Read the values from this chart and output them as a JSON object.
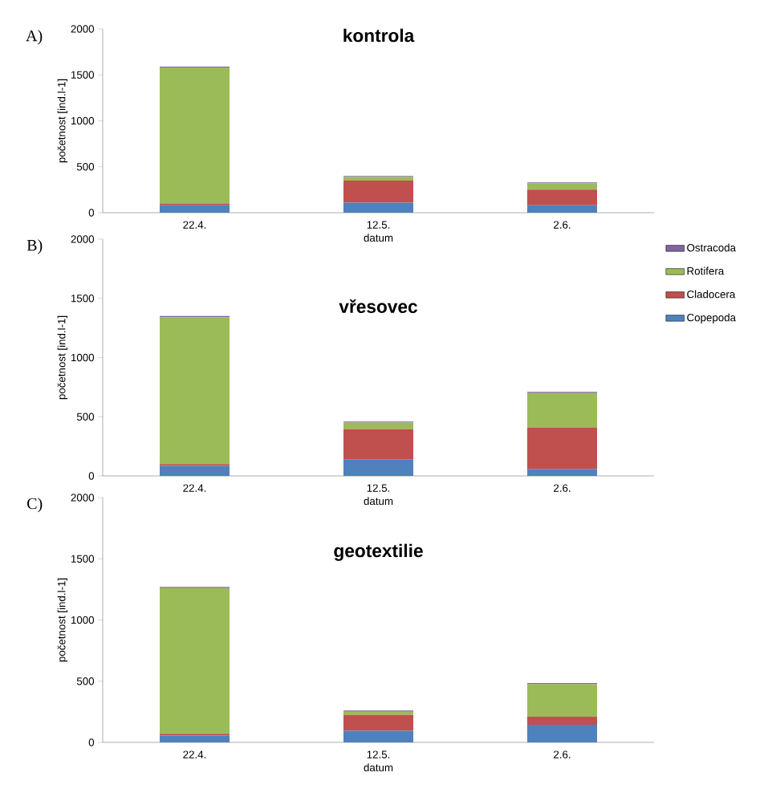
{
  "chart_data": [
    {
      "type": "bar",
      "stacked": true,
      "title": "kontrola",
      "xlabel": "datum",
      "ylabel": "početnost [ind.l-1]",
      "annotations": [
        "A)"
      ],
      "categories": [
        "22.4.",
        "12.5.",
        "2.6."
      ],
      "ylim": [
        0,
        2000
      ],
      "yticks": [
        0,
        500,
        1000,
        1500,
        2000
      ],
      "series": [
        {
          "color": "#4f81bd",
          "values": [
            80,
            110,
            80
          ]
        },
        {
          "color": "#c0504d",
          "values": [
            20,
            240,
            170
          ]
        },
        {
          "color": "#9bbb59",
          "values": [
            1480,
            40,
            70
          ]
        },
        {
          "color": "#8064a2",
          "values": [
            10,
            10,
            10
          ]
        }
      ]
    },
    {
      "type": "bar",
      "stacked": true,
      "title": "vřesovec",
      "xlabel": "datum",
      "ylabel": "početnost [ind.l-1]",
      "annotations": [
        "B)"
      ],
      "categories": [
        "22.4.",
        "12.5.",
        "2.6."
      ],
      "ylim": [
        0,
        2000
      ],
      "yticks": [
        0,
        500,
        1000,
        1500,
        2000
      ],
      "legend": "right",
      "series": [
        {
          "name": "Copepoda",
          "color": "#4f81bd",
          "values": [
            85,
            140,
            60
          ]
        },
        {
          "name": "Cladocera",
          "color": "#c0504d",
          "values": [
            15,
            255,
            350
          ]
        },
        {
          "name": "Rotifera",
          "color": "#9bbb59",
          "values": [
            1240,
            55,
            290
          ]
        },
        {
          "name": "Ostracoda",
          "color": "#8064a2",
          "values": [
            10,
            10,
            10
          ]
        }
      ]
    },
    {
      "type": "bar",
      "stacked": true,
      "title": "geotextilie",
      "xlabel": "datum",
      "ylabel": "početnost [ind.l-1]",
      "annotations": [
        "C)"
      ],
      "categories": [
        "22.4.",
        "12.5.",
        "2.6."
      ],
      "ylim": [
        0,
        2000
      ],
      "yticks": [
        0,
        500,
        1000,
        1500,
        2000
      ],
      "series": [
        {
          "color": "#4f81bd",
          "values": [
            55,
            95,
            145
          ]
        },
        {
          "color": "#c0504d",
          "values": [
            15,
            130,
            65
          ]
        },
        {
          "color": "#9bbb59",
          "values": [
            1190,
            25,
            265
          ]
        },
        {
          "color": "#8064a2",
          "values": [
            10,
            10,
            10
          ]
        }
      ]
    }
  ]
}
